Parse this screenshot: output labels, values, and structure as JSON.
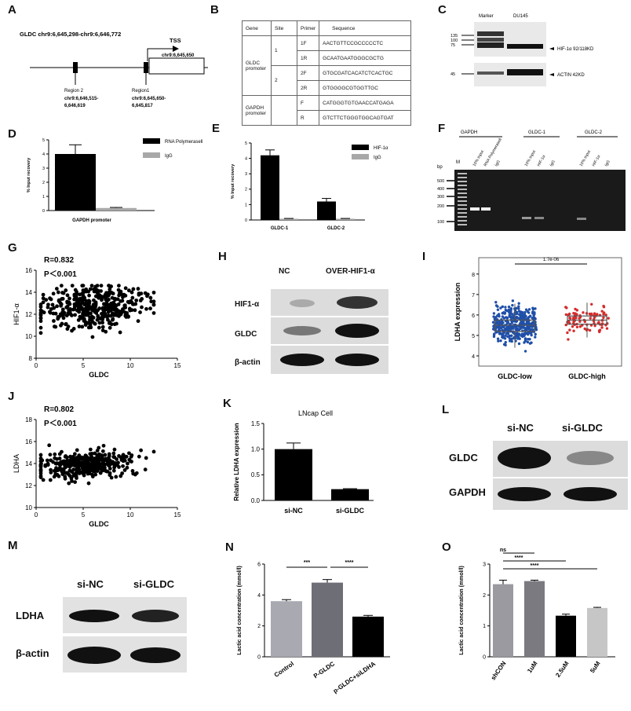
{
  "panel_labels": {
    "A": "A",
    "B": "B",
    "C": "C",
    "D": "D",
    "E": "E",
    "F": "F",
    "G": "G",
    "H": "H",
    "I": "I",
    "J": "J",
    "K": "K",
    "L": "L",
    "M": "M",
    "N": "N",
    "O": "O"
  },
  "panelA": {
    "title": "GLDC chr9:6,645,298-chr9:6,646,772",
    "tss": "TSS",
    "tss_coord": "chr9:6,645,650",
    "region2": "Region 2",
    "region2_coord1": "chr9:6,646,515-",
    "region2_coord2": "6,646,619",
    "region1": "Region1",
    "region1_coord1": "chr9:6,645,650-",
    "region1_coord2": "6,645,817"
  },
  "panelB": {
    "headers": [
      "Gene",
      "Site",
      "Primer",
      "Sequence"
    ],
    "gene1": "GLDC promoter",
    "gene2": "GAPDH promoter",
    "site1": "1",
    "site2": "2",
    "rows": [
      {
        "primer": "1F",
        "seq": "AACTGTTCCGCCCCCTC"
      },
      {
        "primer": "1R",
        "seq": "GCAATGAATGGGCGCTG"
      },
      {
        "primer": "2F",
        "seq": "GTGCGATCACATCTCACTGC"
      },
      {
        "primer": "2R",
        "seq": "GTGGGGCGTGGTTGC"
      },
      {
        "primer": "F",
        "seq": "CATGGGTGTGAACCATGAGA"
      },
      {
        "primer": "R",
        "seq": "GTCTTCTGGGTGGCAGTGAT"
      }
    ]
  },
  "panelC": {
    "lane1": "Marker",
    "lane2": "DU145",
    "m135": "135",
    "m100": "100",
    "m75": "75",
    "m45": "45",
    "band1": "HIF-1α 92/118KD",
    "band2": "ACTIN 42KD"
  },
  "panelF": {
    "group1": "GAPDH",
    "group2": "GLDC-1",
    "group3": "GLDC-2",
    "bp": "bp",
    "marker": "M",
    "lanes": [
      "10% Input",
      "RNA Polymerasell",
      "IgG",
      "10% Input",
      "HIF-1α",
      "IgG",
      "10% Input",
      "HIF-1α",
      "IgG"
    ],
    "ladder": [
      "500",
      "400",
      "300",
      "200",
      "100"
    ]
  },
  "panelH": {
    "col1": "NC",
    "col2": "OVER-HIF1-α",
    "row1": "HIF1-α",
    "row2": "GLDC",
    "row3": "β-actin"
  },
  "panelL": {
    "col1": "si-NC",
    "col2": "si-GLDC",
    "row1": "GLDC",
    "row2": "GAPDH"
  },
  "panelM": {
    "col1": "si-NC",
    "col2": "si-GLDC",
    "row1": "LDHA",
    "row2": "β-actin"
  },
  "chart_data": [
    {
      "id": "D",
      "type": "bar",
      "ylabel": "% Input recovery",
      "xlabel": "GAPDH  promoter",
      "ylim": [
        0,
        5
      ],
      "yticks": [
        0,
        1,
        2,
        3,
        4,
        5
      ],
      "categories": [
        "GAPDH  promoter"
      ],
      "series": [
        {
          "name": "RNA Polymerasell",
          "values": [
            4.0
          ],
          "err": [
            0.65
          ],
          "color": "#000000"
        },
        {
          "name": "IgG",
          "values": [
            0.18
          ],
          "err": [
            0.04
          ],
          "color": "#a8a8a8"
        }
      ]
    },
    {
      "id": "E",
      "type": "bar",
      "ylabel": "% Input recovery",
      "ylim": [
        0,
        5
      ],
      "yticks": [
        0,
        1,
        2,
        3,
        4,
        5
      ],
      "categories": [
        "GLDC-1",
        "GLDC-2"
      ],
      "series": [
        {
          "name": "HIF-1α",
          "values": [
            4.2,
            1.2
          ],
          "err": [
            0.35,
            0.2
          ],
          "color": "#000000"
        },
        {
          "name": "IgG",
          "values": [
            0.08,
            0.08
          ],
          "err": [
            0.02,
            0.02
          ],
          "color": "#a8a8a8"
        }
      ]
    },
    {
      "id": "G",
      "type": "scatter",
      "annotation1": "R=0.832",
      "annotation2": "P＜0.001",
      "xlabel": "GLDC",
      "ylabel": "HIF1-α",
      "xlim": [
        0,
        15
      ],
      "ylim": [
        8,
        16
      ],
      "xticks": [
        0,
        5,
        10,
        15
      ],
      "yticks": [
        8,
        10,
        12,
        14,
        16
      ],
      "n_points": 420,
      "x_mean": 6,
      "y_mean": 12.6,
      "x_sd": 2.6,
      "y_sd": 1.0,
      "x_min": 0.5,
      "x_max": 12.5,
      "y_min": 9.2,
      "y_max": 14.6
    },
    {
      "id": "I",
      "type": "box",
      "ylabel": "LDHA expression",
      "ylim": [
        3.5,
        8.8
      ],
      "yticks": [
        4,
        5,
        6,
        7,
        8
      ],
      "categories": [
        "GLDC-low",
        "GLDC-high"
      ],
      "pvalue": "1.7e-06",
      "boxes": [
        {
          "name": "GLDC-low",
          "q1": 5.2,
          "median": 5.5,
          "q3": 5.75,
          "whisker_low": 4.4,
          "whisker_high": 6.55,
          "min": 3.8,
          "max": 8.4,
          "n": 380,
          "color": "#1f4fa8"
        },
        {
          "name": "GLDC-high",
          "q1": 5.55,
          "median": 5.75,
          "q3": 5.95,
          "whisker_low": 4.9,
          "whisker_high": 6.6,
          "min": 4.6,
          "max": 7.6,
          "n": 90,
          "color": "#d62b2b"
        }
      ]
    },
    {
      "id": "J",
      "type": "scatter",
      "annotation1": "R=0.802",
      "annotation2": "P＜0.001",
      "xlabel": "GLDC",
      "ylabel": "LDHA",
      "xlim": [
        0,
        15
      ],
      "ylim": [
        10,
        18
      ],
      "xticks": [
        0,
        5,
        10,
        15
      ],
      "yticks": [
        10,
        12,
        14,
        16,
        18
      ],
      "n_points": 420,
      "x_mean": 5.5,
      "y_mean": 13.9,
      "x_sd": 2.5,
      "y_sd": 0.6,
      "x_min": 0.5,
      "x_max": 12.5,
      "y_min": 12.2,
      "y_max": 17.0
    },
    {
      "id": "K",
      "type": "bar",
      "title": "LNcap  Cell",
      "ylabel": "Relative LDHA expression",
      "ylim": [
        0,
        1.5
      ],
      "yticks": [
        0.0,
        0.5,
        1.0,
        1.5
      ],
      "categories": [
        "si-NC",
        "si-GLDC"
      ],
      "values": [
        1.0,
        0.22
      ],
      "err": [
        0.12,
        0.01
      ],
      "colors": [
        "#000000",
        "#000000"
      ]
    },
    {
      "id": "N",
      "type": "bar",
      "ylabel": "Lactic acid concentration (mmol/l)",
      "ylim": [
        0,
        6
      ],
      "yticks": [
        0,
        2,
        4,
        6
      ],
      "categories": [
        "Control",
        "P-GLDC",
        "p-GLDC+siLDHA"
      ],
      "values": [
        3.6,
        4.8,
        2.6
      ],
      "err": [
        0.1,
        0.2,
        0.08
      ],
      "colors": [
        "#a9a9b2",
        "#6e6e76",
        "#000000"
      ],
      "significance": [
        {
          "from": 0,
          "to": 1,
          "label": "***"
        },
        {
          "from": 1,
          "to": 2,
          "label": "****"
        }
      ]
    },
    {
      "id": "O",
      "type": "bar",
      "ylabel": "Lactic acid concentration (mmol/l)",
      "ylim": [
        0,
        3
      ],
      "yticks": [
        0,
        1,
        2,
        3
      ],
      "categories": [
        "shCON",
        "1uM",
        "2.5uM",
        "5uM"
      ],
      "values": [
        2.35,
        2.45,
        1.33,
        1.58
      ],
      "err": [
        0.13,
        0.03,
        0.05,
        0.02
      ],
      "colors": [
        "#9a9aa0",
        "#7a7a80",
        "#000000",
        "#c6c6c6"
      ],
      "significance": [
        {
          "from": 0,
          "to": 1,
          "label": "ns"
        },
        {
          "from": 0,
          "to": 2,
          "label": "****"
        },
        {
          "from": 0,
          "to": 3,
          "label": "****"
        }
      ]
    }
  ]
}
